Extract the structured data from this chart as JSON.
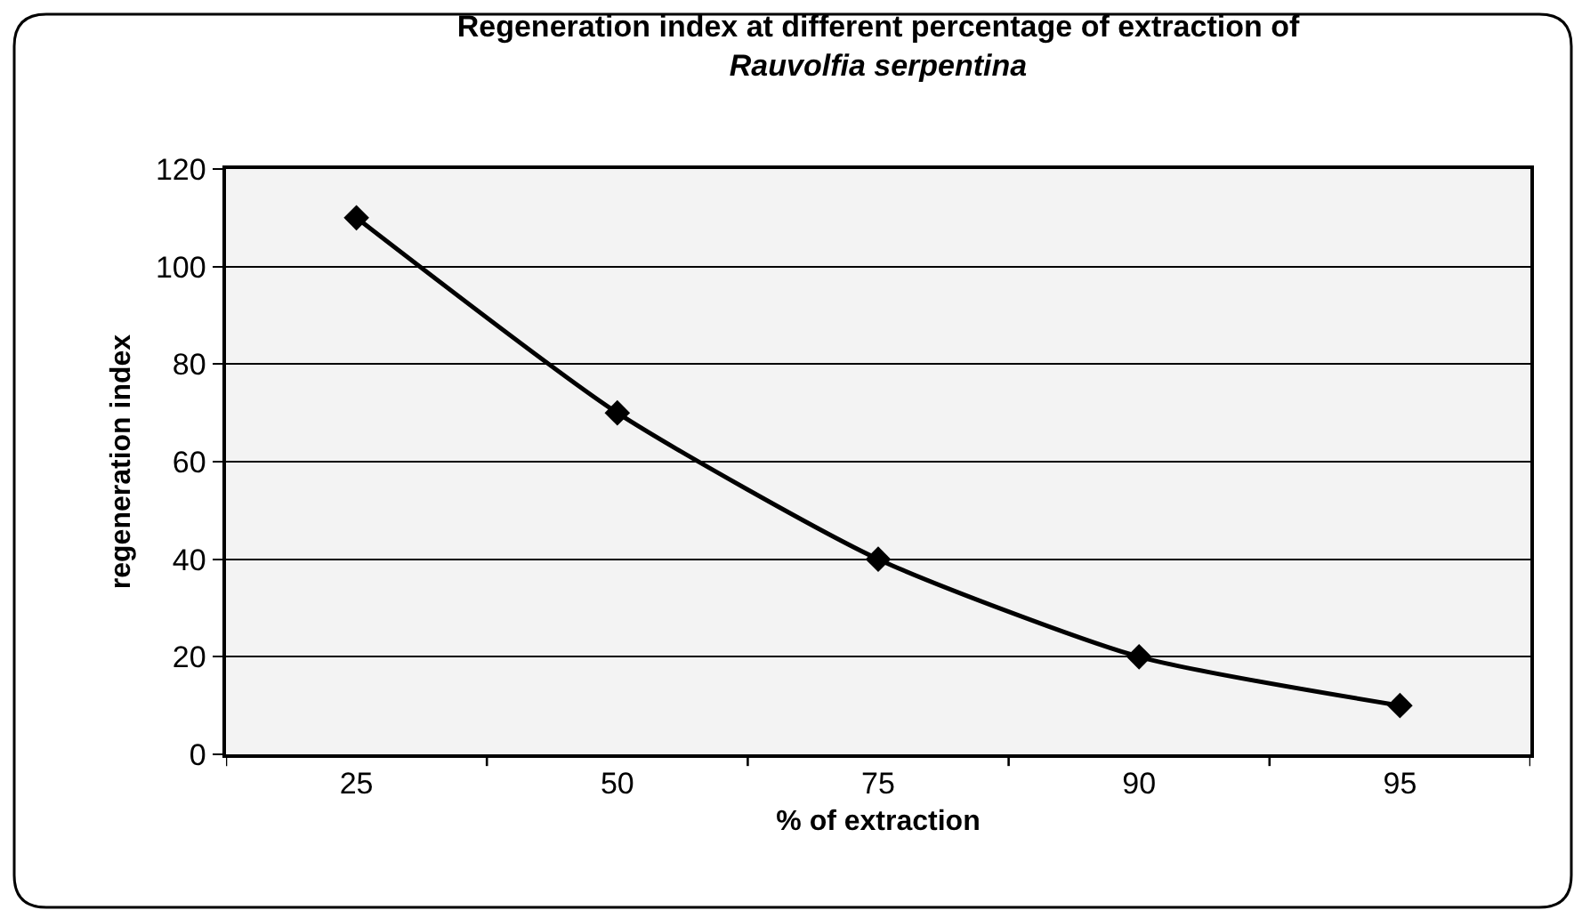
{
  "chart_data": {
    "type": "line",
    "title": "Regeneration index at different percentage of extraction of\nRauvolfia serpentina",
    "xlabel": "% of extraction",
    "ylabel": "regeneration index",
    "categories": [
      "25",
      "50",
      "75",
      "90",
      "95"
    ],
    "series": [
      {
        "color": "#000000",
        "values": [
          110,
          70,
          40,
          20,
          10
        ]
      }
    ],
    "ylim": [
      0,
      120
    ],
    "yticks": [
      0,
      20,
      40,
      60,
      80,
      100,
      120
    ],
    "grid": "y",
    "marker": "diamond",
    "line_style": "solid"
  }
}
